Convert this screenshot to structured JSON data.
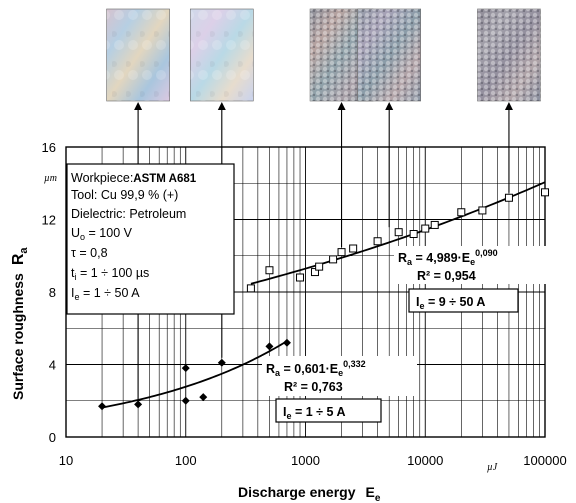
{
  "chart_data": {
    "type": "scatter",
    "title": "",
    "xlabel": "Discharge energy",
    "xlabel_sym": "E",
    "xlabel_sub": "e",
    "ylabel": "Surface roughness",
    "ylabel_sym": "R",
    "ylabel_sub": "a",
    "x_unit": "µJ",
    "y_unit": "µm",
    "x_scale": "log",
    "xlim": [
      10,
      100000
    ],
    "ylim": [
      0,
      16
    ],
    "x_ticks": [
      "10",
      "100",
      "1000",
      "10000",
      "100000"
    ],
    "y_ticks": [
      "0",
      "4",
      "8",
      "12",
      "16"
    ],
    "grid": true,
    "series": [
      {
        "marker": "filled-diamond",
        "color": "#000000",
        "points": [
          [
            20,
            1.7
          ],
          [
            40,
            1.8
          ],
          [
            100,
            2.0
          ],
          [
            100,
            3.8
          ],
          [
            140,
            2.2
          ],
          [
            200,
            4.1
          ],
          [
            500,
            5.0
          ],
          [
            700,
            5.2
          ]
        ],
        "fit": {
          "a": 0.601,
          "b": 0.332,
          "x_range": [
            20,
            700
          ]
        }
      },
      {
        "marker": "open-square",
        "color": "#000000",
        "points": [
          [
            350,
            8.2
          ],
          [
            500,
            9.2
          ],
          [
            900,
            8.8
          ],
          [
            1200,
            9.1
          ],
          [
            1300,
            9.4
          ],
          [
            1700,
            9.8
          ],
          [
            2000,
            10.2
          ],
          [
            2500,
            10.4
          ],
          [
            4000,
            10.8
          ],
          [
            6000,
            11.3
          ],
          [
            8000,
            11.2
          ],
          [
            10000,
            11.5
          ],
          [
            12000,
            11.7
          ],
          [
            20000,
            12.4
          ],
          [
            30000,
            12.5
          ],
          [
            50000,
            13.2
          ],
          [
            100000,
            13.5
          ]
        ],
        "fit": {
          "a": 4.989,
          "b": 0.09,
          "x_range": [
            350,
            100000
          ]
        }
      }
    ],
    "conditions": {
      "workpiece_label": "Workpiece:",
      "workpiece_value": "ASTM A681",
      "tool": "Tool: Cu 99,9 % (+)",
      "dielectric": "Dielectric: Petroleum",
      "u0_sym": "U",
      "u0_sub": "o",
      "u0_value": " = 100 V",
      "tau": "τ = 0,8",
      "ti_sym": "t",
      "ti_sub": "i",
      "ti_value": " = 1 ÷ 100 µs",
      "ie_sym": "I",
      "ie_sub": "e",
      "ie_value": " = 1 ÷ 50 A"
    },
    "annotations": {
      "fit1_eq_lhs": "R",
      "fit1_eq_lhs_sub": "a",
      "fit1_eq_mid": " = 0,601·E",
      "fit1_eq_mid_sub": "e",
      "fit1_eq_exp": "0,332",
      "fit1_r2": "R² = 0,763",
      "fit1_current_sym": "I",
      "fit1_current_sub": "e",
      "fit1_current_value": " = 1 ÷ 5  A",
      "fit2_eq_lhs": "R",
      "fit2_eq_lhs_sub": "a",
      "fit2_eq_mid": " = 4,989·E",
      "fit2_eq_mid_sub": "e",
      "fit2_eq_exp": "0,090",
      "fit2_r2": "R² = 0,954",
      "fit2_current_sym": "I",
      "fit2_current_sub": "e",
      "fit2_current_value": " = 9 ÷ 50  A"
    },
    "micrographs": [
      {
        "x": 40,
        "gradient": [
          "#d6c3cf",
          "#b6cfe3",
          "#e2d6bf",
          "#a9c6de",
          "#dcc9e1"
        ]
      },
      {
        "x": 200,
        "gradient": [
          "#cfd9e9",
          "#dcd0e8",
          "#b9d9e6",
          "#e7dccd",
          "#c9d3ee"
        ]
      },
      {
        "x": 2000,
        "gradient": [
          "#8a8e99",
          "#b7a3a0",
          "#8fa1a9",
          "#a79ea6",
          "#7f8f98"
        ]
      },
      {
        "x": 5000,
        "gradient": [
          "#939aa6",
          "#a6a1b6",
          "#8a9ca8",
          "#b2a3a7",
          "#8b97a6"
        ]
      },
      {
        "x": 50000,
        "gradient": [
          "#8e8a96",
          "#a2a0aa",
          "#938f9e",
          "#b0a4a8",
          "#888e9e"
        ]
      }
    ]
  }
}
